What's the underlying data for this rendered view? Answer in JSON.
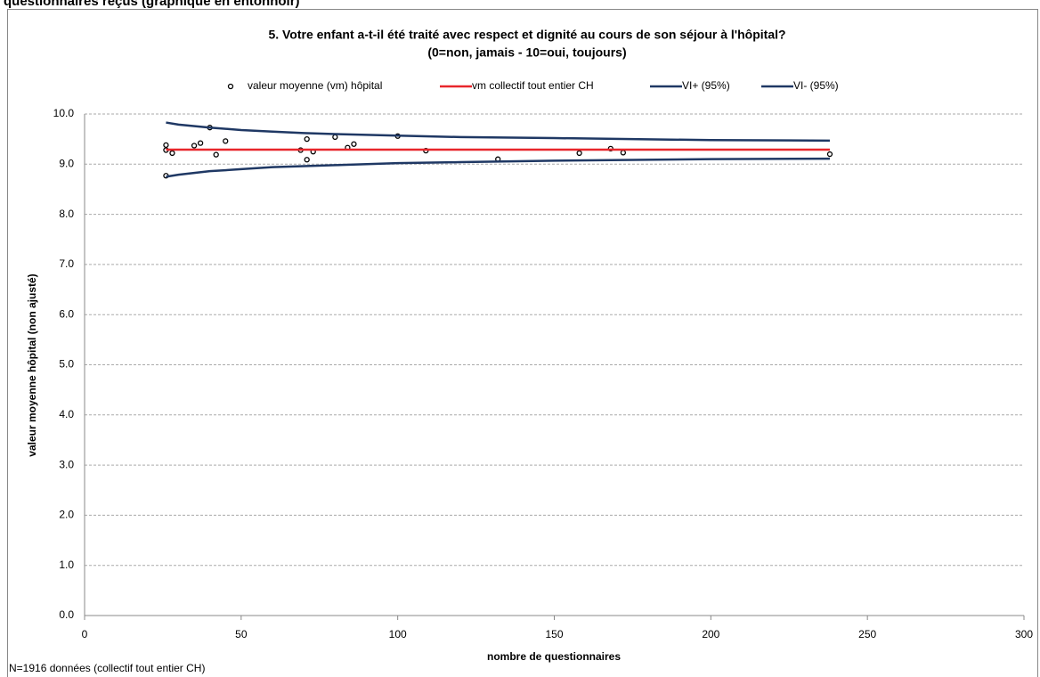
{
  "heading": "questionnaires reçus (graphique en entonnoir)",
  "chart_data": {
    "type": "scatter",
    "title": "5. Votre enfant a-t-il été traité avec respect et dignité au cours de son séjour à l'hôpital?",
    "subtitle": "(0=non, jamais - 10=oui, toujours)",
    "x_label": "nombre de questionnaires",
    "y_label": "valeur moyenne hôpital (non ajusté)",
    "footnote": "N=1916 données (collectif tout entier CH)",
    "xlim": [
      0,
      300
    ],
    "xticks": [
      0,
      50,
      100,
      150,
      200,
      250,
      300
    ],
    "ylim": [
      0,
      10
    ],
    "yticks": [
      {
        "value": 0,
        "label": "0.0"
      },
      {
        "value": 1,
        "label": "1.0"
      },
      {
        "value": 2,
        "label": "2.0"
      },
      {
        "value": 3,
        "label": "3.0"
      },
      {
        "value": 4,
        "label": "4.0"
      },
      {
        "value": 5,
        "label": "5.0"
      },
      {
        "value": 6,
        "label": "6.0"
      },
      {
        "value": 7,
        "label": "7.0"
      },
      {
        "value": 8,
        "label": "8.0"
      },
      {
        "value": 9,
        "label": "9.0"
      },
      {
        "value": 10,
        "label": "10.0"
      }
    ],
    "grid": true,
    "legend": "top",
    "series": [
      {
        "name": "valeur moyenne (vm) hôpital",
        "mode": "markers",
        "color": "#000000",
        "x": [
          26,
          26,
          28,
          35,
          37,
          40,
          42,
          45,
          69,
          71,
          71,
          73,
          80,
          84,
          86,
          100,
          109,
          132,
          158,
          168,
          172,
          238,
          26
        ],
        "values": [
          9.38,
          9.28,
          9.22,
          9.37,
          9.42,
          9.73,
          9.19,
          9.46,
          9.28,
          9.5,
          9.09,
          9.25,
          9.54,
          9.33,
          9.4,
          9.56,
          9.27,
          9.1,
          9.22,
          9.31,
          9.23,
          9.2,
          8.77
        ]
      },
      {
        "name": "vm collectif tout entier CH",
        "mode": "lines",
        "color": "#e8262b",
        "x": [
          26,
          238
        ],
        "values": [
          9.29,
          9.29
        ]
      },
      {
        "name": "VI+ (95%)",
        "mode": "lines",
        "color": "#1f3864",
        "x": [
          26,
          30,
          40,
          50,
          60,
          70,
          80,
          100,
          120,
          150,
          200,
          238
        ],
        "values": [
          9.83,
          9.79,
          9.73,
          9.68,
          9.65,
          9.62,
          9.6,
          9.57,
          9.54,
          9.52,
          9.48,
          9.47
        ]
      },
      {
        "name": "VI- (95%)",
        "mode": "lines",
        "color": "#1f3864",
        "x": [
          26,
          30,
          40,
          50,
          60,
          70,
          80,
          100,
          120,
          150,
          200,
          238
        ],
        "values": [
          8.75,
          8.79,
          8.86,
          8.9,
          8.94,
          8.96,
          8.98,
          9.02,
          9.04,
          9.07,
          9.1,
          9.11
        ]
      }
    ]
  }
}
